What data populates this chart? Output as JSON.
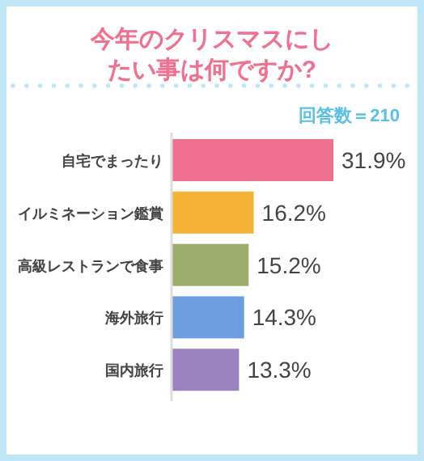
{
  "chart_data": {
    "type": "bar",
    "orientation": "horizontal",
    "title": "今年のクリスマスにしたい事は何ですか?",
    "annotations": [
      "回答数＝210"
    ],
    "categories": [
      "自宅でまったり",
      "イルミネーション鑑賞",
      "高級レストランで食事",
      "海外旅行",
      "国内旅行"
    ],
    "values": [
      31.9,
      16.2,
      15.2,
      14.3,
      13.3
    ],
    "colors": [
      "#f07090",
      "#f5b335",
      "#9cac6a",
      "#6c9ddf",
      "#9b82c0"
    ],
    "value_labels": [
      "31.9%",
      "16.2%",
      "15.2%",
      "14.3%",
      "13.3%"
    ]
  }
}
